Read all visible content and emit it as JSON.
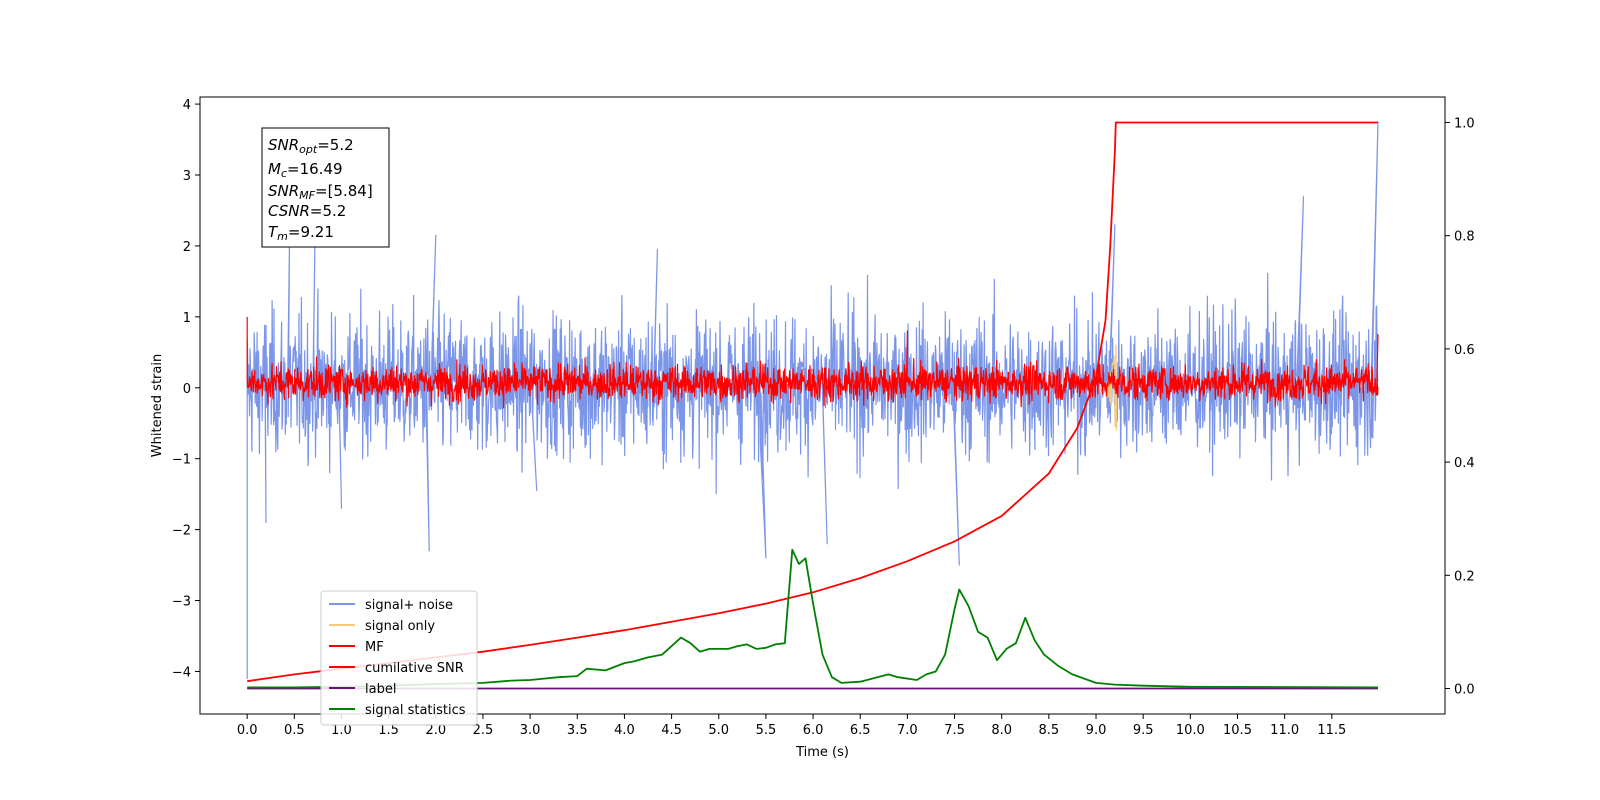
{
  "chart_data": {
    "type": "line",
    "xlabel": "Time (s)",
    "ylabel": "Whitened strain",
    "xlim": [
      -0.5,
      12.7
    ],
    "ylim": [
      -4.6,
      4.1
    ],
    "ylim_right": [
      -0.045,
      1.045
    ],
    "x_ticks": [
      0.0,
      0.5,
      1.0,
      1.5,
      2.0,
      2.5,
      3.0,
      3.5,
      4.0,
      4.5,
      5.0,
      5.5,
      6.0,
      6.5,
      7.0,
      7.5,
      8.0,
      8.5,
      9.0,
      9.5,
      10.0,
      10.5,
      11.0,
      11.5
    ],
    "x_tick_labels": [
      "0.0",
      "0.5",
      "1.0",
      "1.5",
      "2.0",
      "2.5",
      "3.0",
      "3.5",
      "4.0",
      "4.5",
      "5.0",
      "5.5",
      "6.0",
      "6.5",
      "7.0",
      "7.5",
      "8.0",
      "8.5",
      "9.0",
      "9.5",
      "10.0",
      "10.5",
      "11.0",
      "11.5"
    ],
    "y_ticks": [
      -4,
      -3,
      -2,
      -1,
      0,
      1,
      2,
      3,
      4
    ],
    "y_tick_labels": [
      "−4",
      "−3",
      "−2",
      "−1",
      "0",
      "1",
      "2",
      "3",
      "4"
    ],
    "y_ticks_right": [
      0.0,
      0.2,
      0.4,
      0.6,
      0.8,
      1.0
    ],
    "y_tick_labels_right": [
      "0.0",
      "0.2",
      "0.4",
      "0.6",
      "0.8",
      "1.0"
    ],
    "grid": false,
    "legend_position": "lower-left",
    "annotation": {
      "snr_opt_var": "SNR",
      "snr_opt_sub": "opt",
      "snr_opt_val": "=5.2",
      "mc_var": "M",
      "mc_sub": "c",
      "mc_val": "=16.49",
      "snr_mf_var": "SNR",
      "snr_mf_sub": "MF",
      "snr_mf_val": "=[5.84]",
      "csnr_var": "CSNR",
      "csnr_val": "=5.2",
      "tm_var": "T",
      "tm_sub": "m",
      "tm_val": "=9.21"
    },
    "series": [
      {
        "name": "signal+ noise",
        "color": "#7b96e8",
        "axis": "left",
        "kind": "noise",
        "t_start": 0.0,
        "t_end": 11.99,
        "typical_range": [
          -1.2,
          1.3
        ],
        "peaks_x": [
          0.0,
          0.0,
          0.2,
          0.45,
          0.72,
          1.0,
          1.93,
          2.0,
          3.07,
          4.35,
          5.5,
          6.15,
          7.55,
          9.2,
          11.2,
          11.99
        ],
        "peaks_y": [
          -4.1,
          -2.0,
          -1.9,
          2.2,
          2.3,
          -1.7,
          -2.3,
          2.15,
          -1.45,
          1.95,
          -2.4,
          -2.2,
          -2.5,
          2.3,
          2.7,
          3.75
        ]
      },
      {
        "name": "signal only",
        "color": "#f5c97e",
        "axis": "left",
        "kind": "chirp",
        "t_start": 9.0,
        "t_end": 9.22,
        "peak_amplitude": 0.7
      },
      {
        "name": "MF",
        "color": "#ff0000",
        "axis": "left",
        "kind": "noise",
        "t_start": 0.0,
        "t_end": 11.99,
        "typical_range": [
          -0.25,
          0.4
        ],
        "peaks_x": [
          0.0,
          7.0,
          11.99
        ],
        "peaks_y": [
          1.0,
          0.8,
          0.75
        ]
      },
      {
        "name": "cumilative SNR",
        "color": "#ff0000",
        "axis": "right",
        "x": [
          0.0,
          0.5,
          1.0,
          1.5,
          2.0,
          2.5,
          3.0,
          3.5,
          4.0,
          4.5,
          5.0,
          5.5,
          6.0,
          6.5,
          7.0,
          7.5,
          8.0,
          8.5,
          8.8,
          9.0,
          9.1,
          9.15,
          9.2,
          9.21,
          9.5,
          10.0,
          11.0,
          11.99
        ],
        "y": [
          0.013,
          0.025,
          0.035,
          0.045,
          0.055,
          0.065,
          0.077,
          0.09,
          0.103,
          0.118,
          0.133,
          0.15,
          0.17,
          0.195,
          0.225,
          0.26,
          0.305,
          0.38,
          0.46,
          0.55,
          0.65,
          0.78,
          0.95,
          1.0,
          1.0,
          1.0,
          1.0,
          1.0
        ]
      },
      {
        "name": "label",
        "color": "#6b0f7a",
        "axis": "right",
        "x": [
          0.0,
          11.99
        ],
        "y": [
          0.0,
          0.0
        ]
      },
      {
        "name": "signal statistics",
        "color": "#008000",
        "axis": "right",
        "x": [
          0.0,
          0.5,
          1.0,
          1.5,
          2.0,
          2.5,
          2.8,
          3.0,
          3.3,
          3.5,
          3.6,
          3.8,
          4.0,
          4.1,
          4.25,
          4.4,
          4.5,
          4.6,
          4.7,
          4.8,
          4.9,
          5.0,
          5.1,
          5.2,
          5.3,
          5.4,
          5.5,
          5.6,
          5.7,
          5.78,
          5.85,
          5.92,
          6.0,
          6.1,
          6.2,
          6.3,
          6.5,
          6.8,
          6.9,
          7.1,
          7.2,
          7.3,
          7.4,
          7.5,
          7.55,
          7.65,
          7.75,
          7.85,
          7.95,
          8.05,
          8.15,
          8.25,
          8.35,
          8.45,
          8.6,
          8.75,
          9.0,
          9.2,
          9.5,
          10.0,
          11.99
        ],
        "y": [
          0.002,
          0.002,
          0.003,
          0.005,
          0.008,
          0.01,
          0.014,
          0.015,
          0.02,
          0.022,
          0.035,
          0.032,
          0.045,
          0.048,
          0.055,
          0.06,
          0.075,
          0.09,
          0.08,
          0.065,
          0.07,
          0.07,
          0.07,
          0.075,
          0.078,
          0.07,
          0.072,
          0.078,
          0.08,
          0.245,
          0.22,
          0.23,
          0.15,
          0.06,
          0.02,
          0.01,
          0.012,
          0.025,
          0.02,
          0.015,
          0.025,
          0.03,
          0.06,
          0.14,
          0.175,
          0.145,
          0.1,
          0.09,
          0.05,
          0.07,
          0.08,
          0.125,
          0.085,
          0.06,
          0.04,
          0.025,
          0.01,
          0.007,
          0.005,
          0.003,
          0.002
        ]
      }
    ]
  }
}
